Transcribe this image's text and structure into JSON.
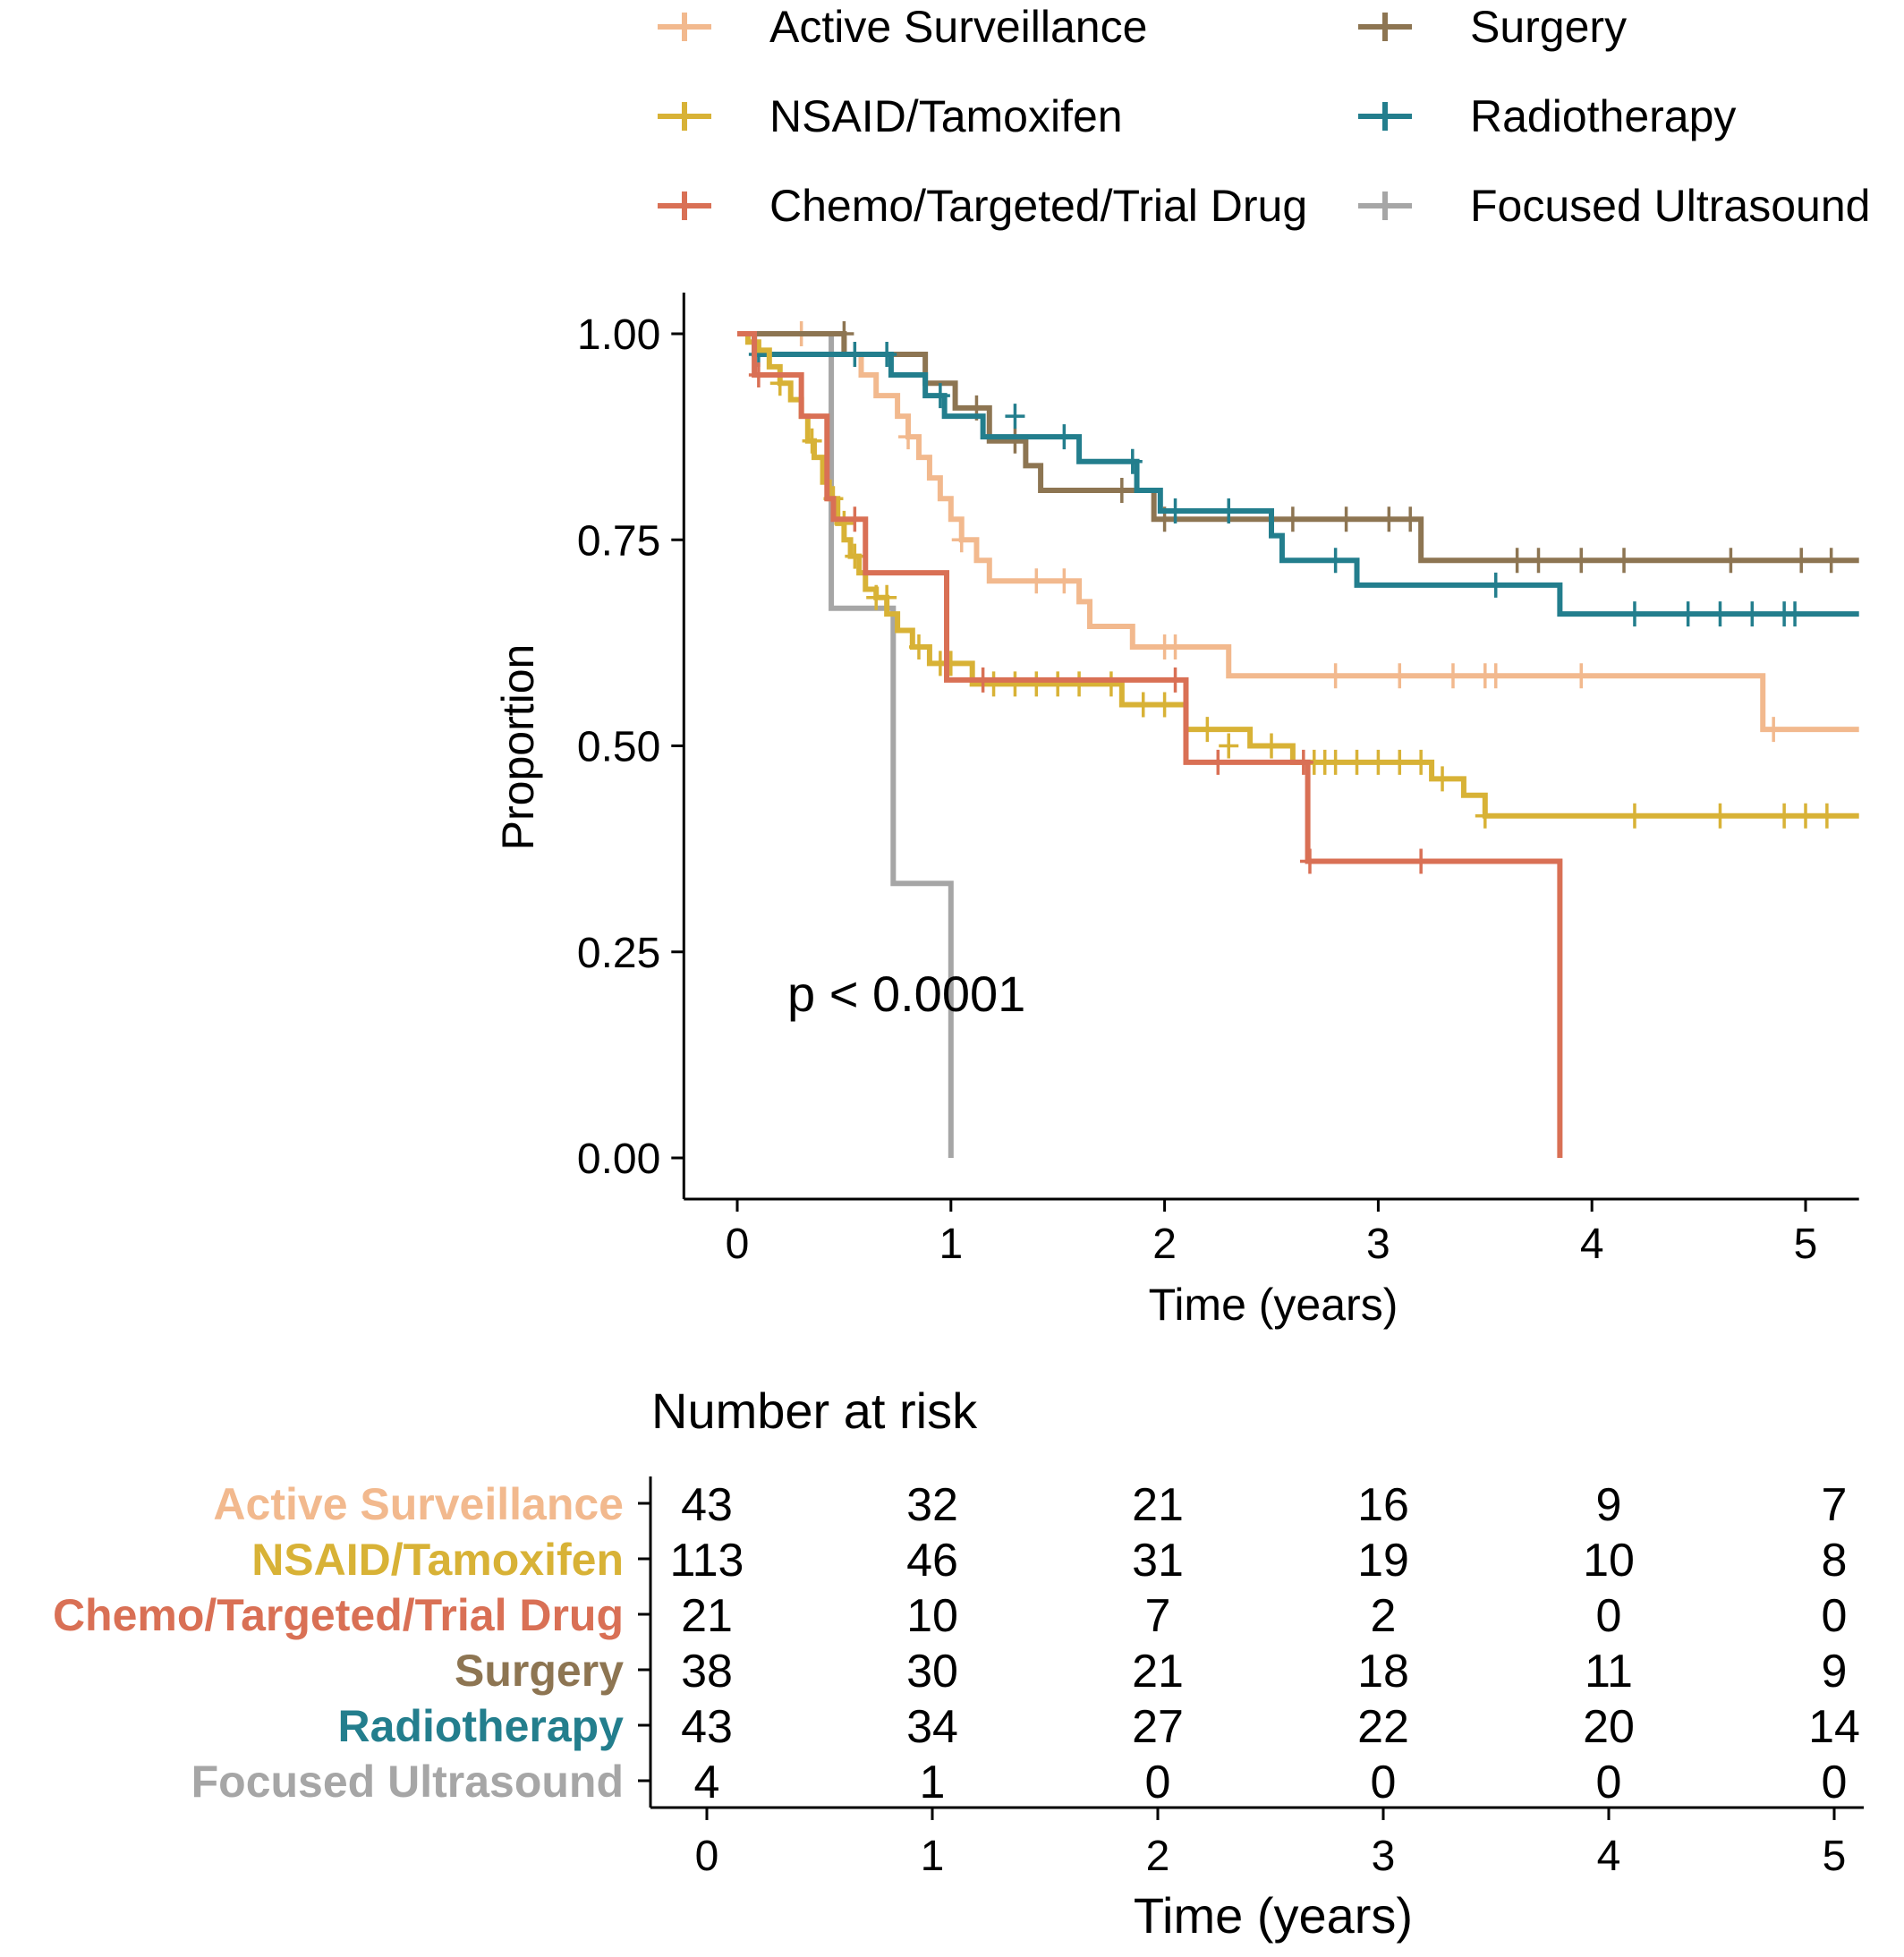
{
  "chart_data": {
    "type": "line",
    "subtype": "kaplan-meier step",
    "title": "",
    "xlabel": "Time (years)",
    "ylabel": "Proportion",
    "xlim": [
      -0.25,
      5.25
    ],
    "ylim": [
      -0.05,
      1.05
    ],
    "x_ticks": [
      0,
      1,
      2,
      3,
      4,
      5
    ],
    "y_ticks": [
      "0.00",
      "0.25",
      "0.50",
      "0.75",
      "1.00"
    ],
    "annotation": "p < 0.0001",
    "legend_position": "top",
    "grid": false,
    "series": [
      {
        "name": "Active Surveillance",
        "color": "#F2B98E",
        "steps": [
          [
            0,
            1.0
          ],
          [
            0.5,
            0.975
          ],
          [
            0.58,
            0.95
          ],
          [
            0.65,
            0.925
          ],
          [
            0.75,
            0.9
          ],
          [
            0.8,
            0.875
          ],
          [
            0.85,
            0.85
          ],
          [
            0.9,
            0.825
          ],
          [
            0.95,
            0.8
          ],
          [
            1.0,
            0.775
          ],
          [
            1.05,
            0.75
          ],
          [
            1.12,
            0.725
          ],
          [
            1.18,
            0.7
          ],
          [
            1.6,
            0.675
          ],
          [
            1.65,
            0.645
          ],
          [
            1.85,
            0.62
          ],
          [
            2.3,
            0.585
          ],
          [
            4.8,
            0.52
          ],
          [
            5.25,
            0.52
          ]
        ],
        "censors": [
          [
            0.3,
            1.0
          ],
          [
            0.8,
            0.875
          ],
          [
            1.05,
            0.75
          ],
          [
            1.4,
            0.7
          ],
          [
            1.53,
            0.7
          ],
          [
            2.0,
            0.62
          ],
          [
            2.05,
            0.62
          ],
          [
            2.8,
            0.585
          ],
          [
            3.1,
            0.585
          ],
          [
            3.35,
            0.585
          ],
          [
            3.5,
            0.585
          ],
          [
            3.55,
            0.585
          ],
          [
            3.95,
            0.585
          ],
          [
            4.85,
            0.52
          ]
        ]
      },
      {
        "name": "NSAID/Tamoxifen",
        "color": "#D8B236",
        "steps": [
          [
            0,
            1.0
          ],
          [
            0.05,
            0.99
          ],
          [
            0.1,
            0.98
          ],
          [
            0.15,
            0.96
          ],
          [
            0.2,
            0.94
          ],
          [
            0.25,
            0.92
          ],
          [
            0.3,
            0.9
          ],
          [
            0.33,
            0.87
          ],
          [
            0.36,
            0.85
          ],
          [
            0.4,
            0.82
          ],
          [
            0.43,
            0.8
          ],
          [
            0.47,
            0.77
          ],
          [
            0.5,
            0.75
          ],
          [
            0.53,
            0.73
          ],
          [
            0.57,
            0.71
          ],
          [
            0.6,
            0.69
          ],
          [
            0.65,
            0.68
          ],
          [
            0.7,
            0.66
          ],
          [
            0.75,
            0.64
          ],
          [
            0.82,
            0.62
          ],
          [
            0.9,
            0.6
          ],
          [
            1.1,
            0.575
          ],
          [
            1.8,
            0.55
          ],
          [
            2.1,
            0.52
          ],
          [
            2.4,
            0.5
          ],
          [
            2.6,
            0.48
          ],
          [
            3.25,
            0.46
          ],
          [
            3.4,
            0.44
          ],
          [
            3.5,
            0.415
          ],
          [
            5.25,
            0.415
          ]
        ],
        "censors": [
          [
            0.2,
            0.94
          ],
          [
            0.35,
            0.87
          ],
          [
            0.45,
            0.8
          ],
          [
            0.5,
            0.77
          ],
          [
            0.55,
            0.73
          ],
          [
            0.65,
            0.68
          ],
          [
            0.7,
            0.68
          ],
          [
            0.85,
            0.62
          ],
          [
            0.95,
            0.6
          ],
          [
            1.0,
            0.6
          ],
          [
            1.2,
            0.575
          ],
          [
            1.3,
            0.575
          ],
          [
            1.4,
            0.575
          ],
          [
            1.5,
            0.575
          ],
          [
            1.6,
            0.575
          ],
          [
            1.75,
            0.575
          ],
          [
            1.9,
            0.55
          ],
          [
            2.0,
            0.55
          ],
          [
            2.2,
            0.52
          ],
          [
            2.3,
            0.5
          ],
          [
            2.5,
            0.5
          ],
          [
            2.7,
            0.48
          ],
          [
            2.75,
            0.48
          ],
          [
            2.8,
            0.48
          ],
          [
            2.9,
            0.48
          ],
          [
            3.0,
            0.48
          ],
          [
            3.1,
            0.48
          ],
          [
            3.2,
            0.48
          ],
          [
            3.3,
            0.46
          ],
          [
            3.5,
            0.415
          ],
          [
            4.2,
            0.415
          ],
          [
            4.6,
            0.415
          ],
          [
            4.9,
            0.415
          ],
          [
            5.0,
            0.415
          ],
          [
            5.1,
            0.415
          ]
        ]
      },
      {
        "name": "Chemo/Targeted/Trial Drug",
        "color": "#D97055",
        "steps": [
          [
            0,
            1.0
          ],
          [
            0.08,
            0.95
          ],
          [
            0.3,
            0.9
          ],
          [
            0.42,
            0.8
          ],
          [
            0.45,
            0.775
          ],
          [
            0.6,
            0.71
          ],
          [
            0.98,
            0.58
          ],
          [
            2.1,
            0.48
          ],
          [
            2.67,
            0.36
          ],
          [
            3.85,
            0.0
          ]
        ],
        "censors": [
          [
            0.1,
            0.95
          ],
          [
            0.55,
            0.775
          ],
          [
            1.15,
            0.58
          ],
          [
            2.05,
            0.58
          ],
          [
            2.25,
            0.48
          ],
          [
            2.65,
            0.48
          ],
          [
            2.68,
            0.36
          ],
          [
            3.2,
            0.36
          ]
        ]
      },
      {
        "name": "Surgery",
        "color": "#8D7552",
        "steps": [
          [
            0,
            1.0
          ],
          [
            0.5,
            0.975
          ],
          [
            0.88,
            0.94
          ],
          [
            1.02,
            0.91
          ],
          [
            1.18,
            0.87
          ],
          [
            1.35,
            0.84
          ],
          [
            1.42,
            0.81
          ],
          [
            1.95,
            0.775
          ],
          [
            3.2,
            0.725
          ],
          [
            5.25,
            0.725
          ]
        ],
        "censors": [
          [
            0.5,
            1.0
          ],
          [
            1.12,
            0.91
          ],
          [
            1.3,
            0.87
          ],
          [
            1.8,
            0.81
          ],
          [
            2.0,
            0.775
          ],
          [
            2.6,
            0.775
          ],
          [
            2.85,
            0.775
          ],
          [
            3.05,
            0.775
          ],
          [
            3.15,
            0.775
          ],
          [
            3.65,
            0.725
          ],
          [
            3.75,
            0.725
          ],
          [
            3.95,
            0.725
          ],
          [
            4.15,
            0.725
          ],
          [
            4.65,
            0.725
          ],
          [
            4.98,
            0.725
          ],
          [
            5.12,
            0.725
          ]
        ]
      },
      {
        "name": "Radiotherapy",
        "color": "#237E8D",
        "steps": [
          [
            0,
            1.0
          ],
          [
            0.08,
            0.975
          ],
          [
            0.72,
            0.95
          ],
          [
            0.88,
            0.925
          ],
          [
            0.97,
            0.9
          ],
          [
            1.15,
            0.875
          ],
          [
            1.6,
            0.845
          ],
          [
            1.87,
            0.81
          ],
          [
            1.98,
            0.785
          ],
          [
            2.5,
            0.755
          ],
          [
            2.55,
            0.725
          ],
          [
            2.9,
            0.695
          ],
          [
            3.85,
            0.66
          ],
          [
            5.25,
            0.66
          ]
        ],
        "censors": [
          [
            0.1,
            0.975
          ],
          [
            0.55,
            0.975
          ],
          [
            0.7,
            0.975
          ],
          [
            0.95,
            0.925
          ],
          [
            1.3,
            0.9
          ],
          [
            1.53,
            0.875
          ],
          [
            1.85,
            0.845
          ],
          [
            2.05,
            0.785
          ],
          [
            2.3,
            0.785
          ],
          [
            2.8,
            0.725
          ],
          [
            3.55,
            0.695
          ],
          [
            4.2,
            0.66
          ],
          [
            4.45,
            0.66
          ],
          [
            4.6,
            0.66
          ],
          [
            4.75,
            0.66
          ],
          [
            4.9,
            0.66
          ],
          [
            4.95,
            0.66
          ]
        ]
      },
      {
        "name": "Focused Ultrasound",
        "color": "#A6A6A6",
        "steps": [
          [
            0,
            1.0
          ],
          [
            0.44,
            0.667
          ],
          [
            0.73,
            0.333
          ],
          [
            1.0,
            0.0
          ]
        ],
        "censors": []
      }
    ],
    "risk_table": {
      "title": "Number at risk",
      "xlabel": "Time (years)",
      "times": [
        0,
        1,
        2,
        3,
        4,
        5
      ],
      "rows": [
        {
          "name": "Active Surveillance",
          "values": [
            43,
            32,
            21,
            16,
            9,
            7
          ]
        },
        {
          "name": "NSAID/Tamoxifen",
          "values": [
            113,
            46,
            31,
            19,
            10,
            8
          ]
        },
        {
          "name": "Chemo/Targeted/Trial Drug",
          "values": [
            21,
            10,
            7,
            2,
            0,
            0
          ]
        },
        {
          "name": "Surgery",
          "values": [
            38,
            30,
            21,
            18,
            11,
            9
          ]
        },
        {
          "name": "Radiotherapy",
          "values": [
            43,
            34,
            27,
            22,
            20,
            14
          ]
        },
        {
          "name": "Focused Ultrasound",
          "values": [
            4,
            1,
            0,
            0,
            0,
            0
          ]
        }
      ]
    }
  }
}
